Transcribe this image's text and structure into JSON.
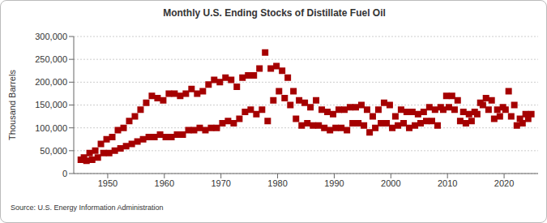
{
  "chart_data": {
    "type": "scatter",
    "title": "Monthly U.S. Ending Stocks of Distillate Fuel Oil",
    "y_label": "Thousand Barrels",
    "source": "Source: U.S. Energy Information Administration",
    "color": "#a50000",
    "marker": "square",
    "grid": true,
    "xlim": [
      1944,
      2026
    ],
    "xticks": [
      1950,
      1960,
      1970,
      1980,
      1990,
      2000,
      2010,
      2020
    ],
    "ylim": [
      0,
      300000
    ],
    "yticks": [
      0,
      {
        "value": 50000,
        "label": "50,000"
      },
      {
        "value": 100000,
        "label": "100,000"
      },
      {
        "value": 150000,
        "label": "150,000"
      },
      {
        "value": 200000,
        "label": "200,000"
      },
      {
        "value": 250000,
        "label": "250,000"
      },
      {
        "value": 300000,
        "label": "300,000"
      }
    ],
    "x": [
      1945.25,
      1945.8,
      1946.25,
      1946.8,
      1947.25,
      1947.8,
      1948.25,
      1948.8,
      1949.25,
      1949.8,
      1950.25,
      1950.8,
      1951.25,
      1951.8,
      1952.25,
      1952.8,
      1953.25,
      1953.8,
      1954.25,
      1954.8,
      1955.25,
      1955.8,
      1956.25,
      1956.8,
      1957.25,
      1957.8,
      1958.25,
      1958.8,
      1959.25,
      1959.8,
      1960.25,
      1960.8,
      1961.25,
      1961.8,
      1962.25,
      1962.8,
      1963.25,
      1963.8,
      1964.25,
      1964.8,
      1965.25,
      1965.8,
      1966.25,
      1966.8,
      1967.25,
      1967.8,
      1968.25,
      1968.8,
      1969.25,
      1969.8,
      1970.25,
      1970.8,
      1971.25,
      1971.8,
      1972.25,
      1972.8,
      1973.25,
      1973.8,
      1974.25,
      1974.8,
      1975.25,
      1975.8,
      1976.25,
      1976.8,
      1977.25,
      1977.8,
      1978.25,
      1978.8,
      1979.25,
      1979.8,
      1980.25,
      1980.8,
      1981.25,
      1981.8,
      1982.25,
      1982.8,
      1983.25,
      1983.8,
      1984.25,
      1984.8,
      1985.25,
      1985.8,
      1986.25,
      1986.8,
      1987.25,
      1987.8,
      1988.25,
      1988.8,
      1989.25,
      1989.8,
      1990.25,
      1990.8,
      1991.25,
      1991.8,
      1992.25,
      1992.8,
      1993.25,
      1993.8,
      1994.25,
      1994.8,
      1995.25,
      1995.8,
      1996.25,
      1996.8,
      1997.25,
      1997.8,
      1998.25,
      1998.8,
      1999.25,
      1999.8,
      2000.25,
      2000.8,
      2001.25,
      2001.8,
      2002.25,
      2002.8,
      2003.25,
      2003.8,
      2004.25,
      2004.8,
      2005.25,
      2005.8,
      2006.25,
      2006.8,
      2007.25,
      2007.8,
      2008.25,
      2008.8,
      2009.25,
      2009.8,
      2010.25,
      2010.8,
      2011.25,
      2011.8,
      2012.25,
      2012.8,
      2013.25,
      2013.8,
      2014.25,
      2014.8,
      2015.25,
      2015.8,
      2016.25,
      2016.8,
      2017.25,
      2017.8,
      2018.25,
      2018.8,
      2019.25,
      2019.8,
      2020.25,
      2020.8,
      2021.25,
      2021.8,
      2022.25,
      2022.8,
      2023.25,
      2023.8,
      2024.25,
      2024.8
    ],
    "values": [
      30000,
      35000,
      28000,
      45000,
      30000,
      50000,
      35000,
      65000,
      45000,
      75000,
      45000,
      80000,
      50000,
      95000,
      55000,
      100000,
      60000,
      115000,
      65000,
      125000,
      70000,
      140000,
      75000,
      155000,
      80000,
      170000,
      80000,
      165000,
      85000,
      160000,
      80000,
      175000,
      80000,
      175000,
      85000,
      170000,
      85000,
      175000,
      95000,
      185000,
      95000,
      175000,
      100000,
      180000,
      95000,
      195000,
      100000,
      205000,
      100000,
      200000,
      110000,
      210000,
      115000,
      205000,
      110000,
      190000,
      120000,
      210000,
      135000,
      215000,
      140000,
      215000,
      130000,
      230000,
      140000,
      265000,
      115000,
      230000,
      160000,
      235000,
      180000,
      225000,
      165000,
      210000,
      150000,
      180000,
      120000,
      160000,
      105000,
      155000,
      110000,
      145000,
      105000,
      160000,
      105000,
      140000,
      100000,
      135000,
      95000,
      130000,
      100000,
      140000,
      100000,
      140000,
      95000,
      145000,
      110000,
      145000,
      110000,
      150000,
      105000,
      140000,
      90000,
      125000,
      100000,
      140000,
      110000,
      155000,
      110000,
      150000,
      100000,
      125000,
      105000,
      140000,
      110000,
      135000,
      100000,
      135000,
      105000,
      130000,
      110000,
      135000,
      115000,
      145000,
      115000,
      140000,
      105000,
      145000,
      140000,
      170000,
      145000,
      170000,
      140000,
      160000,
      115000,
      135000,
      110000,
      130000,
      115000,
      135000,
      130000,
      155000,
      150000,
      165000,
      140000,
      160000,
      120000,
      140000,
      125000,
      145000,
      140000,
      180000,
      125000,
      150000,
      105000,
      120000,
      110000,
      130000,
      120000,
      130000
    ]
  }
}
